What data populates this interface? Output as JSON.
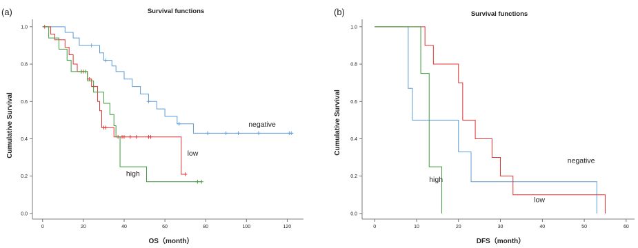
{
  "chart_data": [
    {
      "type": "line",
      "panel_label": "(a)",
      "title": "Survival functions",
      "xlabel": "OS（month）",
      "ylabel": "Cumulative Survival",
      "xlim": [
        -5,
        128
      ],
      "ylim": [
        -0.03,
        1.04
      ],
      "xticks": [
        0,
        20,
        40,
        60,
        80,
        100,
        120
      ],
      "yticks": [
        0.0,
        0.2,
        0.4,
        0.6,
        0.8,
        1.0
      ],
      "grid": false,
      "step": true,
      "series": [
        {
          "name": "negative",
          "color": "#5b9bd5",
          "points": [
            [
              0,
              1.0
            ],
            [
              11,
              1.0
            ],
            [
              11,
              0.97
            ],
            [
              15,
              0.97
            ],
            [
              15,
              0.94
            ],
            [
              18,
              0.94
            ],
            [
              18,
              0.9
            ],
            [
              28,
              0.9
            ],
            [
              28,
              0.86
            ],
            [
              30,
              0.86
            ],
            [
              30,
              0.82
            ],
            [
              34,
              0.82
            ],
            [
              34,
              0.79
            ],
            [
              36,
              0.79
            ],
            [
              36,
              0.76
            ],
            [
              40,
              0.76
            ],
            [
              40,
              0.72
            ],
            [
              44,
              0.72
            ],
            [
              44,
              0.68
            ],
            [
              48,
              0.68
            ],
            [
              48,
              0.64
            ],
            [
              52,
              0.64
            ],
            [
              52,
              0.6
            ],
            [
              56,
              0.6
            ],
            [
              56,
              0.56
            ],
            [
              60,
              0.56
            ],
            [
              60,
              0.52
            ],
            [
              66,
              0.52
            ],
            [
              66,
              0.48
            ],
            [
              74,
              0.48
            ],
            [
              74,
              0.43
            ],
            [
              123,
              0.43
            ]
          ],
          "censored": [
            [
              24,
              0.9
            ],
            [
              31,
              0.82
            ],
            [
              52,
              0.6
            ],
            [
              67,
              0.48
            ],
            [
              81,
              0.43
            ],
            [
              90,
              0.43
            ],
            [
              96,
              0.43
            ],
            [
              106,
              0.43
            ],
            [
              121,
              0.43
            ],
            [
              122,
              0.43
            ]
          ]
        },
        {
          "name": "low",
          "color": "#e03030",
          "points": [
            [
              0,
              1.0
            ],
            [
              4,
              1.0
            ],
            [
              4,
              0.96
            ],
            [
              6,
              0.96
            ],
            [
              6,
              0.93
            ],
            [
              11,
              0.93
            ],
            [
              11,
              0.89
            ],
            [
              13,
              0.89
            ],
            [
              13,
              0.85
            ],
            [
              15,
              0.85
            ],
            [
              15,
              0.8
            ],
            [
              17,
              0.8
            ],
            [
              17,
              0.76
            ],
            [
              22,
              0.76
            ],
            [
              22,
              0.72
            ],
            [
              24,
              0.72
            ],
            [
              24,
              0.68
            ],
            [
              27,
              0.68
            ],
            [
              27,
              0.6
            ],
            [
              28,
              0.6
            ],
            [
              28,
              0.55
            ],
            [
              29,
              0.55
            ],
            [
              29,
              0.46
            ],
            [
              35,
              0.46
            ],
            [
              35,
              0.41
            ],
            [
              68,
              0.41
            ],
            [
              68,
              0.21
            ],
            [
              70,
              0.21
            ]
          ],
          "censored": [
            [
              1,
              1.0
            ],
            [
              19,
              0.76
            ],
            [
              20,
              0.76
            ],
            [
              23,
              0.72
            ],
            [
              25,
              0.68
            ],
            [
              30,
              0.46
            ],
            [
              31,
              0.46
            ],
            [
              37,
              0.41
            ],
            [
              39,
              0.41
            ],
            [
              40,
              0.41
            ],
            [
              43,
              0.41
            ],
            [
              46,
              0.41
            ],
            [
              52,
              0.41
            ],
            [
              53,
              0.41
            ],
            [
              70,
              0.21
            ]
          ]
        },
        {
          "name": "high",
          "color": "#3d9a3d",
          "points": [
            [
              0,
              1.0
            ],
            [
              3,
              1.0
            ],
            [
              3,
              0.94
            ],
            [
              8,
              0.94
            ],
            [
              8,
              0.88
            ],
            [
              12,
              0.88
            ],
            [
              12,
              0.82
            ],
            [
              14,
              0.82
            ],
            [
              14,
              0.76
            ],
            [
              22,
              0.76
            ],
            [
              22,
              0.71
            ],
            [
              25,
              0.71
            ],
            [
              25,
              0.65
            ],
            [
              30,
              0.65
            ],
            [
              30,
              0.59
            ],
            [
              33,
              0.59
            ],
            [
              33,
              0.53
            ],
            [
              35,
              0.53
            ],
            [
              35,
              0.47
            ],
            [
              36,
              0.47
            ],
            [
              36,
              0.41
            ],
            [
              38,
              0.41
            ],
            [
              38,
              0.25
            ],
            [
              51,
              0.25
            ],
            [
              51,
              0.17
            ],
            [
              78,
              0.17
            ]
          ],
          "censored": [
            [
              19,
              0.76
            ],
            [
              21,
              0.76
            ],
            [
              76,
              0.17
            ],
            [
              78,
              0.17
            ]
          ]
        }
      ],
      "labels": [
        {
          "text": "negative",
          "x": 101,
          "y": 0.465
        },
        {
          "text": "low",
          "x": 71,
          "y": 0.31
        },
        {
          "text": "high",
          "x": 41,
          "y": 0.2
        }
      ]
    },
    {
      "type": "line",
      "panel_label": "(b)",
      "title": "Survival functions",
      "xlabel": "DFS（month）",
      "ylabel": "Cumulative Survival",
      "xlim": [
        -3,
        62
      ],
      "ylim": [
        -0.03,
        1.04
      ],
      "xticks": [
        0,
        10,
        20,
        30,
        40,
        50,
        60
      ],
      "yticks": [
        0.0,
        0.2,
        0.4,
        0.6,
        0.8,
        1.0
      ],
      "grid": false,
      "step": true,
      "series": [
        {
          "name": "negative",
          "color": "#5b9bd5",
          "points": [
            [
              0,
              1.0
            ],
            [
              8,
              1.0
            ],
            [
              8,
              0.67
            ],
            [
              9,
              0.67
            ],
            [
              9,
              0.5
            ],
            [
              20,
              0.5
            ],
            [
              20,
              0.33
            ],
            [
              23,
              0.33
            ],
            [
              23,
              0.17
            ],
            [
              53,
              0.17
            ],
            [
              53,
              0.0
            ]
          ],
          "censored": []
        },
        {
          "name": "low",
          "color": "#e03030",
          "points": [
            [
              0,
              1.0
            ],
            [
              12,
              1.0
            ],
            [
              12,
              0.9
            ],
            [
              14,
              0.9
            ],
            [
              14,
              0.8
            ],
            [
              20,
              0.8
            ],
            [
              20,
              0.7
            ],
            [
              21,
              0.7
            ],
            [
              21,
              0.6
            ],
            [
              21,
              0.5
            ],
            [
              24,
              0.5
            ],
            [
              24,
              0.4
            ],
            [
              28,
              0.4
            ],
            [
              28,
              0.3
            ],
            [
              30,
              0.3
            ],
            [
              30,
              0.2
            ],
            [
              33,
              0.2
            ],
            [
              33,
              0.1
            ],
            [
              55,
              0.1
            ],
            [
              55,
              0.0
            ]
          ],
          "censored": []
        },
        {
          "name": "high",
          "color": "#3d9a3d",
          "points": [
            [
              0,
              1.0
            ],
            [
              11,
              1.0
            ],
            [
              11,
              0.75
            ],
            [
              13,
              0.75
            ],
            [
              13,
              0.25
            ],
            [
              16,
              0.25
            ],
            [
              16,
              0.0
            ]
          ],
          "censored": []
        }
      ],
      "labels": [
        {
          "text": "negative",
          "x": 46,
          "y": 0.27
        },
        {
          "text": "low",
          "x": 38,
          "y": 0.06
        },
        {
          "text": "high",
          "x": 13,
          "y": 0.17
        }
      ]
    }
  ]
}
